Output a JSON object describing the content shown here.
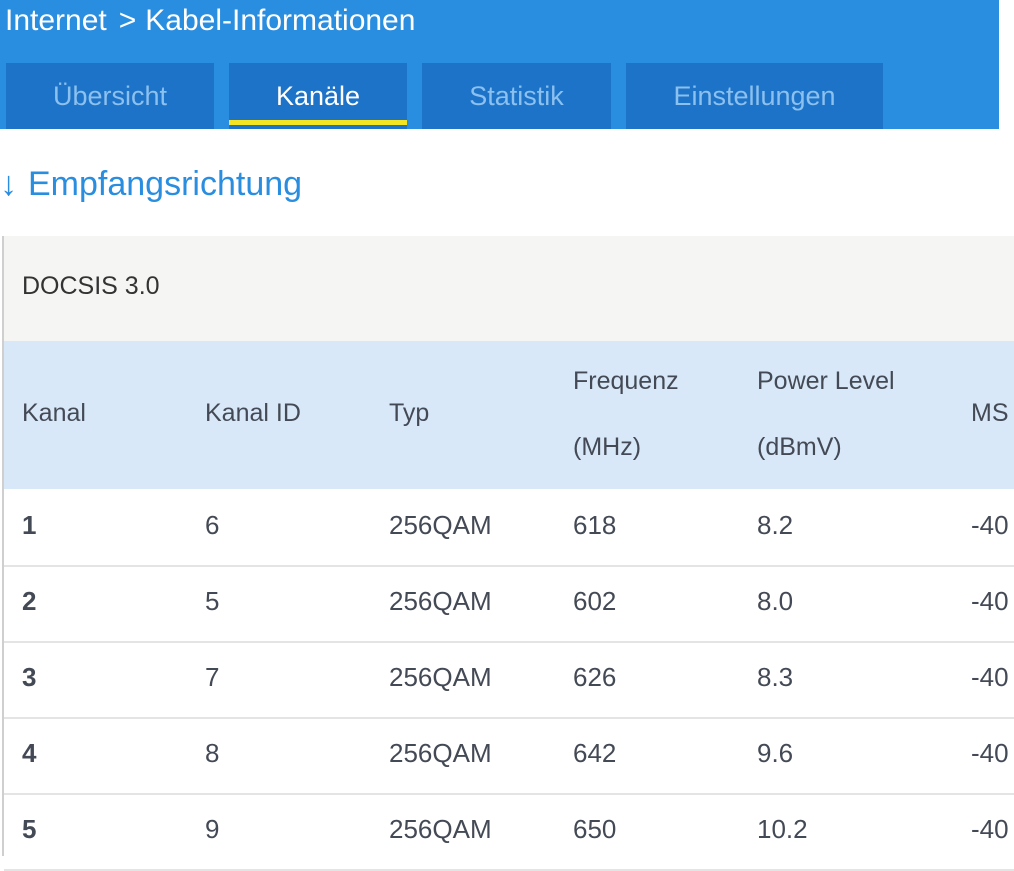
{
  "breadcrumb": {
    "parent": "Internet",
    "separator": ">",
    "current": "Kabel-Informationen"
  },
  "tabs": [
    {
      "label": "Übersicht",
      "active": false
    },
    {
      "label": "Kanäle",
      "active": true
    },
    {
      "label": "Statistik",
      "active": false
    },
    {
      "label": "Einstellungen",
      "active": false
    }
  ],
  "section": {
    "arrow": "↓",
    "title": "Empfangsrichtung"
  },
  "group": {
    "label": "DOCSIS 3.0"
  },
  "table": {
    "headers": [
      {
        "line1": "Kanal",
        "line2": ""
      },
      {
        "line1": "Kanal ID",
        "line2": ""
      },
      {
        "line1": "Typ",
        "line2": ""
      },
      {
        "line1": "Frequenz",
        "line2": "(MHz)"
      },
      {
        "line1": "Power Level",
        "line2": "(dBmV)"
      },
      {
        "line1": "MS",
        "line2": ""
      }
    ],
    "rows": [
      [
        "1",
        "6",
        "256QAM",
        "618",
        "8.2",
        "-40"
      ],
      [
        "2",
        "5",
        "256QAM",
        "602",
        "8.0",
        "-40"
      ],
      [
        "3",
        "7",
        "256QAM",
        "626",
        "8.3",
        "-40"
      ],
      [
        "4",
        "8",
        "256QAM",
        "642",
        "9.6",
        "-40"
      ],
      [
        "5",
        "9",
        "256QAM",
        "650",
        "10.2",
        "-40"
      ]
    ]
  },
  "colors": {
    "header_bg": "#2a8ee0",
    "tab_bg": "#1c73c8",
    "tab_active_underline": "#f3e524",
    "section_title": "#2a8ee0",
    "table_header_bg": "#d8e8f8"
  }
}
